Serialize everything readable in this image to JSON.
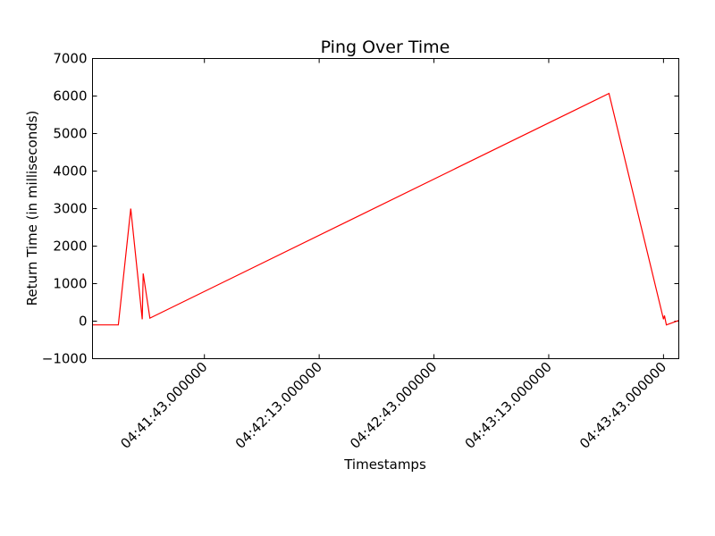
{
  "chart_data": {
    "type": "line",
    "title": "Ping Over Time",
    "xlabel": "Timestamps",
    "ylabel": "Return Time (in milliseconds)",
    "ylim": [
      -1000,
      7000
    ],
    "xlim": [
      "04:41:13.750000",
      "04:43:47.000000"
    ],
    "yticks": [
      -1000,
      0,
      1000,
      2000,
      3000,
      4000,
      5000,
      6000,
      7000
    ],
    "yticklabels": [
      "−1000",
      "0",
      "1000",
      "2000",
      "3000",
      "4000",
      "5000",
      "6000",
      "7000"
    ],
    "xticks": [
      "04:41:43.000000",
      "04:42:13.000000",
      "04:42:43.000000",
      "04:43:13.000000",
      "04:43:43.000000"
    ],
    "grid": false,
    "series": [
      {
        "color": "#ff0000",
        "x": [
          "04:41:13.750000",
          "04:41:20.500000",
          "04:41:23.750000",
          "04:41:26.750000",
          "04:41:27.000000",
          "04:41:28.750000",
          "04:43:28.750000",
          "04:43:43.000000",
          "04:43:43.250000",
          "04:43:43.750000",
          "04:43:47.000000"
        ],
        "y": [
          -100,
          -100,
          3000,
          50,
          1270,
          80,
          6070,
          50,
          150,
          -100,
          20
        ]
      }
    ]
  }
}
